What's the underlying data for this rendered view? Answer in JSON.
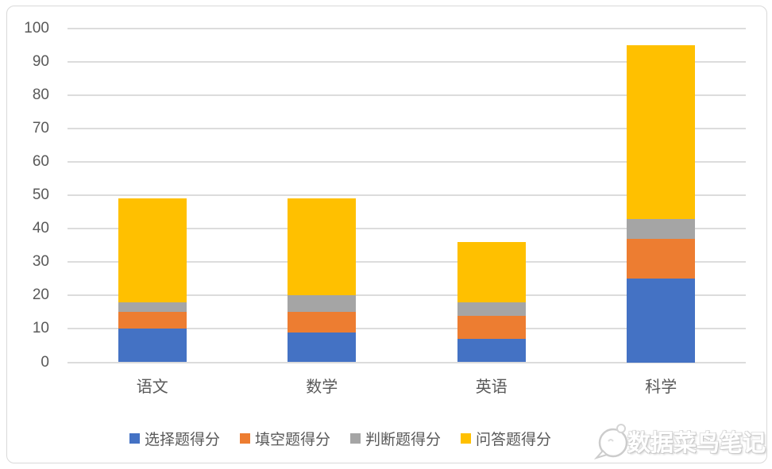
{
  "chart_data": {
    "type": "bar",
    "stacked": true,
    "title": "",
    "categories": [
      "语文",
      "数学",
      "英语",
      "科学"
    ],
    "series": [
      {
        "name": "选择题得分",
        "color": "#4472C4",
        "values": [
          10,
          9,
          7,
          25
        ]
      },
      {
        "name": "填空题得分",
        "color": "#ED7D31",
        "values": [
          5,
          6,
          7,
          12
        ]
      },
      {
        "name": "判断题得分",
        "color": "#A5A5A5",
        "values": [
          3,
          5,
          4,
          6
        ]
      },
      {
        "name": "问答题得分",
        "color": "#FFC000",
        "values": [
          31,
          29,
          18,
          52
        ]
      }
    ],
    "totals": [
      49,
      49,
      36,
      95
    ],
    "xlabel": "",
    "ylabel": "",
    "ylim": [
      0,
      100
    ],
    "ytick_step": 10,
    "ytick_labels": [
      "0",
      "10",
      "20",
      "30",
      "40",
      "50",
      "60",
      "70",
      "80",
      "90",
      "100"
    ],
    "grid": true,
    "legend_position": "bottom"
  },
  "watermark": {
    "text": "数据菜鸟笔记",
    "icon": "chat-bubble-icon"
  },
  "colors": {
    "axis_text": "#595959",
    "gridline": "#D9D9D9",
    "frame_border": "#D9D9D9",
    "background": "#FFFFFF"
  }
}
